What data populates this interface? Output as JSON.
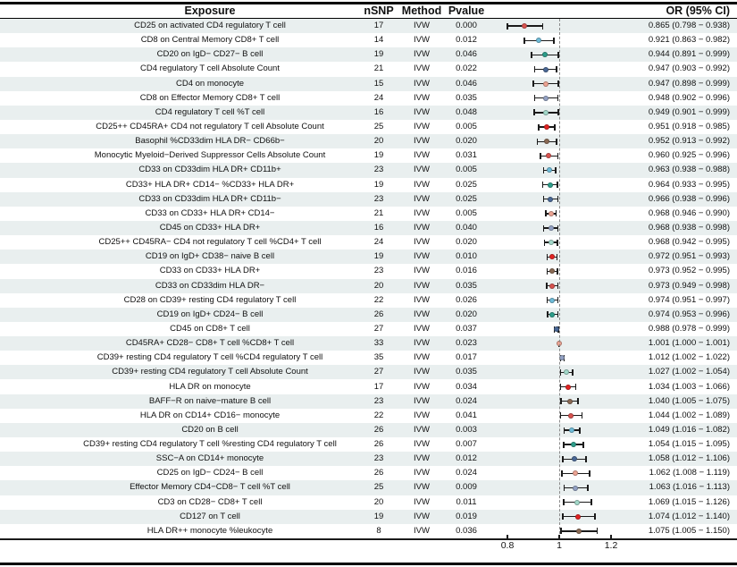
{
  "chart_data": {
    "type": "forest",
    "columns": [
      "Exposure",
      "nSNP",
      "Method",
      "Pvalue",
      "OR (95% CI)"
    ],
    "x_axis": {
      "ticks": [
        0.8,
        1,
        1.2
      ],
      "tick_labels": [
        "0.8",
        "1",
        "1.2"
      ],
      "ref_line": 1,
      "range": [
        0.75,
        1.25
      ]
    },
    "palette": [
      "#d9534f",
      "#6fbcd9",
      "#2d9e8b",
      "#4a6896",
      "#eda493",
      "#93a2c4",
      "#a3d9ca",
      "#e32322",
      "#8a6a55"
    ],
    "stripe_color": "#e9efef",
    "rows": [
      {
        "exposure": "CD25 on activated CD4 regulatory T cell",
        "nsnp": "17",
        "method": "IVW",
        "pvalue": "0.000",
        "or": 0.865,
        "ci_low": 0.798,
        "ci_high": 0.938,
        "or_label": "0.865 (0.798 − 0.938)"
      },
      {
        "exposure": "CD8 on Central Memory CD8+ T cell",
        "nsnp": "14",
        "method": "IVW",
        "pvalue": "0.012",
        "or": 0.921,
        "ci_low": 0.863,
        "ci_high": 0.982,
        "or_label": "0.921 (0.863 − 0.982)"
      },
      {
        "exposure": "CD20 on IgD− CD27− B cell",
        "nsnp": "19",
        "method": "IVW",
        "pvalue": "0.046",
        "or": 0.944,
        "ci_low": 0.891,
        "ci_high": 0.999,
        "or_label": "0.944 (0.891 − 0.999)"
      },
      {
        "exposure": "CD4 regulatory T cell Absolute Count",
        "nsnp": "21",
        "method": "IVW",
        "pvalue": "0.022",
        "or": 0.947,
        "ci_low": 0.903,
        "ci_high": 0.992,
        "or_label": "0.947 (0.903 − 0.992)"
      },
      {
        "exposure": "CD4 on monocyte",
        "nsnp": "15",
        "method": "IVW",
        "pvalue": "0.046",
        "or": 0.947,
        "ci_low": 0.898,
        "ci_high": 0.999,
        "or_label": "0.947 (0.898 − 0.999)"
      },
      {
        "exposure": "CD8 on Effector Memory CD8+ T cell",
        "nsnp": "24",
        "method": "IVW",
        "pvalue": "0.035",
        "or": 0.948,
        "ci_low": 0.902,
        "ci_high": 0.996,
        "or_label": "0.948 (0.902 − 0.996)"
      },
      {
        "exposure": "CD4 regulatory T cell %T cell",
        "nsnp": "16",
        "method": "IVW",
        "pvalue": "0.048",
        "or": 0.949,
        "ci_low": 0.901,
        "ci_high": 0.999,
        "or_label": "0.949 (0.901 − 0.999)"
      },
      {
        "exposure": "CD25++ CD45RA+ CD4 not regulatory T cell Absolute Count",
        "nsnp": "25",
        "method": "IVW",
        "pvalue": "0.005",
        "or": 0.951,
        "ci_low": 0.918,
        "ci_high": 0.985,
        "or_label": "0.951 (0.918 − 0.985)"
      },
      {
        "exposure": "Basophil %CD33dim HLA DR− CD66b−",
        "nsnp": "20",
        "method": "IVW",
        "pvalue": "0.020",
        "or": 0.952,
        "ci_low": 0.913,
        "ci_high": 0.992,
        "or_label": "0.952 (0.913 − 0.992)"
      },
      {
        "exposure": "Monocytic Myeloid−Derived Suppressor Cells Absolute Count",
        "nsnp": "19",
        "method": "IVW",
        "pvalue": "0.031",
        "or": 0.96,
        "ci_low": 0.925,
        "ci_high": 0.996,
        "or_label": "0.960 (0.925 − 0.996)"
      },
      {
        "exposure": "CD33 on CD33dim HLA DR+ CD11b+",
        "nsnp": "23",
        "method": "IVW",
        "pvalue": "0.005",
        "or": 0.963,
        "ci_low": 0.938,
        "ci_high": 0.988,
        "or_label": "0.963 (0.938 − 0.988)"
      },
      {
        "exposure": "CD33+ HLA DR+ CD14− %CD33+ HLA DR+",
        "nsnp": "19",
        "method": "IVW",
        "pvalue": "0.025",
        "or": 0.964,
        "ci_low": 0.933,
        "ci_high": 0.995,
        "or_label": "0.964 (0.933 − 0.995)"
      },
      {
        "exposure": "CD33 on CD33dim HLA DR+ CD11b−",
        "nsnp": "23",
        "method": "IVW",
        "pvalue": "0.025",
        "or": 0.966,
        "ci_low": 0.938,
        "ci_high": 0.996,
        "or_label": "0.966 (0.938 − 0.996)"
      },
      {
        "exposure": "CD33 on CD33+ HLA DR+ CD14−",
        "nsnp": "21",
        "method": "IVW",
        "pvalue": "0.005",
        "or": 0.968,
        "ci_low": 0.946,
        "ci_high": 0.99,
        "or_label": "0.968 (0.946 − 0.990)"
      },
      {
        "exposure": "CD45 on CD33+ HLA DR+",
        "nsnp": "16",
        "method": "IVW",
        "pvalue": "0.040",
        "or": 0.968,
        "ci_low": 0.938,
        "ci_high": 0.998,
        "or_label": "0.968 (0.938 − 0.998)"
      },
      {
        "exposure": "CD25++ CD45RA− CD4 not regulatory T cell %CD4+ T cell",
        "nsnp": "24",
        "method": "IVW",
        "pvalue": "0.020",
        "or": 0.968,
        "ci_low": 0.942,
        "ci_high": 0.995,
        "or_label": "0.968 (0.942 − 0.995)"
      },
      {
        "exposure": "CD19 on IgD+ CD38− naive B cell",
        "nsnp": "19",
        "method": "IVW",
        "pvalue": "0.010",
        "or": 0.972,
        "ci_low": 0.951,
        "ci_high": 0.993,
        "or_label": "0.972 (0.951 − 0.993)"
      },
      {
        "exposure": "CD33 on CD33+ HLA DR+",
        "nsnp": "23",
        "method": "IVW",
        "pvalue": "0.016",
        "or": 0.973,
        "ci_low": 0.952,
        "ci_high": 0.995,
        "or_label": "0.973 (0.952 − 0.995)"
      },
      {
        "exposure": "CD33 on CD33dim HLA DR−",
        "nsnp": "20",
        "method": "IVW",
        "pvalue": "0.035",
        "or": 0.973,
        "ci_low": 0.949,
        "ci_high": 0.998,
        "or_label": "0.973 (0.949 − 0.998)"
      },
      {
        "exposure": "CD28 on CD39+ resting CD4 regulatory T cell",
        "nsnp": "22",
        "method": "IVW",
        "pvalue": "0.026",
        "or": 0.974,
        "ci_low": 0.951,
        "ci_high": 0.997,
        "or_label": "0.974 (0.951 − 0.997)"
      },
      {
        "exposure": "CD19 on IgD+ CD24− B cell",
        "nsnp": "26",
        "method": "IVW",
        "pvalue": "0.020",
        "or": 0.974,
        "ci_low": 0.953,
        "ci_high": 0.996,
        "or_label": "0.974 (0.953 − 0.996)"
      },
      {
        "exposure": "CD45 on CD8+ T cell",
        "nsnp": "27",
        "method": "IVW",
        "pvalue": "0.037",
        "or": 0.988,
        "ci_low": 0.978,
        "ci_high": 0.999,
        "or_label": "0.988 (0.978 − 0.999)"
      },
      {
        "exposure": "CD45RA+ CD28− CD8+ T cell %CD8+ T cell",
        "nsnp": "33",
        "method": "IVW",
        "pvalue": "0.023",
        "or": 1.001,
        "ci_low": 1.0,
        "ci_high": 1.001,
        "or_label": "1.001 (1.000 − 1.001)"
      },
      {
        "exposure": "CD39+ resting CD4 regulatory T cell %CD4 regulatory T cell",
        "nsnp": "35",
        "method": "IVW",
        "pvalue": "0.017",
        "or": 1.012,
        "ci_low": 1.002,
        "ci_high": 1.022,
        "or_label": "1.012 (1.002 − 1.022)"
      },
      {
        "exposure": "CD39+ resting CD4 regulatory T cell Absolute Count",
        "nsnp": "27",
        "method": "IVW",
        "pvalue": "0.035",
        "or": 1.027,
        "ci_low": 1.002,
        "ci_high": 1.054,
        "or_label": "1.027 (1.002 − 1.054)"
      },
      {
        "exposure": "HLA DR on monocyte",
        "nsnp": "17",
        "method": "IVW",
        "pvalue": "0.034",
        "or": 1.034,
        "ci_low": 1.003,
        "ci_high": 1.066,
        "or_label": "1.034 (1.003 − 1.066)"
      },
      {
        "exposure": "BAFF−R on naive−mature B cell",
        "nsnp": "23",
        "method": "IVW",
        "pvalue": "0.024",
        "or": 1.04,
        "ci_low": 1.005,
        "ci_high": 1.075,
        "or_label": "1.040 (1.005 − 1.075)"
      },
      {
        "exposure": "HLA DR on CD14+ CD16− monocyte",
        "nsnp": "22",
        "method": "IVW",
        "pvalue": "0.041",
        "or": 1.044,
        "ci_low": 1.002,
        "ci_high": 1.089,
        "or_label": "1.044 (1.002 − 1.089)"
      },
      {
        "exposure": "CD20 on B cell",
        "nsnp": "26",
        "method": "IVW",
        "pvalue": "0.003",
        "or": 1.049,
        "ci_low": 1.016,
        "ci_high": 1.082,
        "or_label": "1.049 (1.016 − 1.082)"
      },
      {
        "exposure": "CD39+ resting CD4 regulatory T cell %resting CD4 regulatory T cell",
        "nsnp": "26",
        "method": "IVW",
        "pvalue": "0.007",
        "or": 1.054,
        "ci_low": 1.015,
        "ci_high": 1.095,
        "or_label": "1.054 (1.015 − 1.095)"
      },
      {
        "exposure": "SSC−A on CD14+ monocyte",
        "nsnp": "23",
        "method": "IVW",
        "pvalue": "0.012",
        "or": 1.058,
        "ci_low": 1.012,
        "ci_high": 1.106,
        "or_label": "1.058 (1.012 − 1.106)"
      },
      {
        "exposure": "CD25 on IgD− CD24− B cell",
        "nsnp": "26",
        "method": "IVW",
        "pvalue": "0.024",
        "or": 1.062,
        "ci_low": 1.008,
        "ci_high": 1.119,
        "or_label": "1.062 (1.008 − 1.119)"
      },
      {
        "exposure": "Effector Memory CD4−CD8− T cell %T cell",
        "nsnp": "25",
        "method": "IVW",
        "pvalue": "0.009",
        "or": 1.063,
        "ci_low": 1.016,
        "ci_high": 1.113,
        "or_label": "1.063 (1.016 − 1.113)"
      },
      {
        "exposure": "CD3 on CD28− CD8+ T cell",
        "nsnp": "20",
        "method": "IVW",
        "pvalue": "0.011",
        "or": 1.069,
        "ci_low": 1.015,
        "ci_high": 1.126,
        "or_label": "1.069 (1.015 − 1.126)"
      },
      {
        "exposure": "CD127 on T cell",
        "nsnp": "19",
        "method": "IVW",
        "pvalue": "0.019",
        "or": 1.074,
        "ci_low": 1.012,
        "ci_high": 1.14,
        "or_label": "1.074 (1.012 − 1.140)"
      },
      {
        "exposure": "HLA DR++ monocyte %leukocyte",
        "nsnp": "8",
        "method": "IVW",
        "pvalue": "0.036",
        "or": 1.075,
        "ci_low": 1.005,
        "ci_high": 1.15,
        "or_label": "1.075 (1.005 − 1.150)"
      }
    ]
  }
}
